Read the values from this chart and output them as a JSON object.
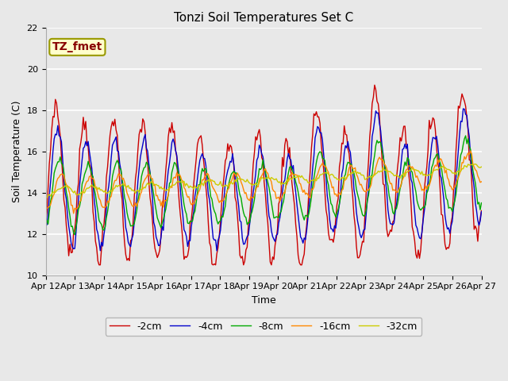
{
  "title": "Tonzi Soil Temperatures Set C",
  "xlabel": "Time",
  "ylabel": "Soil Temperature (C)",
  "ylim": [
    10,
    22
  ],
  "yticks": [
    10,
    12,
    14,
    16,
    18,
    20,
    22
  ],
  "x_tick_labels": [
    "Apr 12",
    "Apr 13",
    "Apr 14",
    "Apr 15",
    "Apr 16",
    "Apr 17",
    "Apr 18",
    "Apr 19",
    "Apr 20",
    "Apr 21",
    "Apr 22",
    "Apr 23",
    "Apr 24",
    "Apr 25",
    "Apr 26",
    "Apr 27"
  ],
  "series_labels": [
    "-2cm",
    "-4cm",
    "-8cm",
    "-16cm",
    "-32cm"
  ],
  "series_colors": [
    "#cc0000",
    "#0000cc",
    "#00aa00",
    "#ff8800",
    "#cccc00"
  ],
  "annotation_text": "TZ_fmet",
  "annotation_color": "#880000",
  "annotation_bg": "#ffffcc",
  "annotation_border": "#999900",
  "bg_color": "#e8e8e8",
  "title_fontsize": 11,
  "axis_fontsize": 9,
  "tick_fontsize": 8
}
